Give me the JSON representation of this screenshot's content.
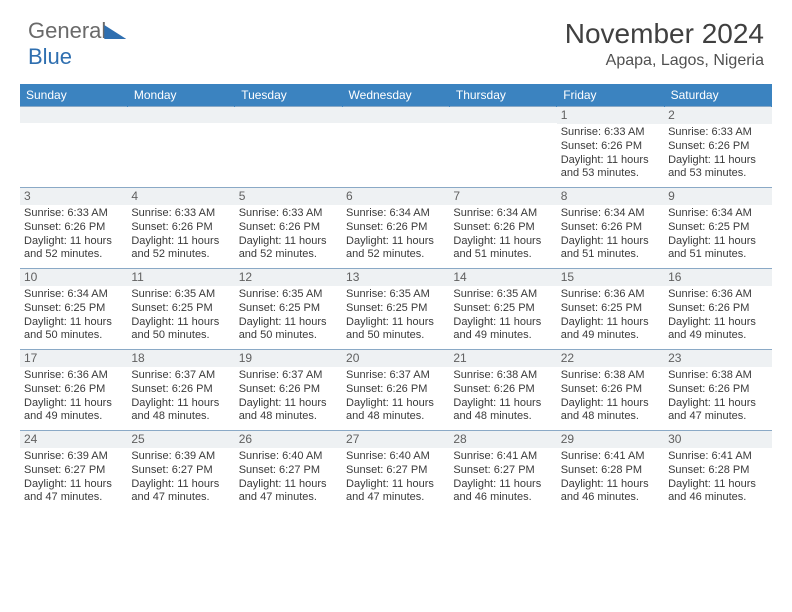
{
  "logo": {
    "part1": "General",
    "part2": "Blue"
  },
  "title": "November 2024",
  "location": "Apapa, Lagos, Nigeria",
  "dow": [
    "Sunday",
    "Monday",
    "Tuesday",
    "Wednesday",
    "Thursday",
    "Friday",
    "Saturday"
  ],
  "colors": {
    "header_bg": "#3b83c0",
    "header_text": "#ffffff",
    "cell_border": "#8aa9c6",
    "daynum_bg": "#eef1f3",
    "text": "#3a3a3a",
    "title_text": "#404040",
    "logo_gray": "#6a6a6a",
    "logo_blue": "#2f6fb0"
  },
  "weeks": [
    [
      {
        "n": "",
        "sr": "",
        "ss": "",
        "dl": ""
      },
      {
        "n": "",
        "sr": "",
        "ss": "",
        "dl": ""
      },
      {
        "n": "",
        "sr": "",
        "ss": "",
        "dl": ""
      },
      {
        "n": "",
        "sr": "",
        "ss": "",
        "dl": ""
      },
      {
        "n": "",
        "sr": "",
        "ss": "",
        "dl": ""
      },
      {
        "n": "1",
        "sr": "Sunrise: 6:33 AM",
        "ss": "Sunset: 6:26 PM",
        "dl": "Daylight: 11 hours and 53 minutes."
      },
      {
        "n": "2",
        "sr": "Sunrise: 6:33 AM",
        "ss": "Sunset: 6:26 PM",
        "dl": "Daylight: 11 hours and 53 minutes."
      }
    ],
    [
      {
        "n": "3",
        "sr": "Sunrise: 6:33 AM",
        "ss": "Sunset: 6:26 PM",
        "dl": "Daylight: 11 hours and 52 minutes."
      },
      {
        "n": "4",
        "sr": "Sunrise: 6:33 AM",
        "ss": "Sunset: 6:26 PM",
        "dl": "Daylight: 11 hours and 52 minutes."
      },
      {
        "n": "5",
        "sr": "Sunrise: 6:33 AM",
        "ss": "Sunset: 6:26 PM",
        "dl": "Daylight: 11 hours and 52 minutes."
      },
      {
        "n": "6",
        "sr": "Sunrise: 6:34 AM",
        "ss": "Sunset: 6:26 PM",
        "dl": "Daylight: 11 hours and 52 minutes."
      },
      {
        "n": "7",
        "sr": "Sunrise: 6:34 AM",
        "ss": "Sunset: 6:26 PM",
        "dl": "Daylight: 11 hours and 51 minutes."
      },
      {
        "n": "8",
        "sr": "Sunrise: 6:34 AM",
        "ss": "Sunset: 6:26 PM",
        "dl": "Daylight: 11 hours and 51 minutes."
      },
      {
        "n": "9",
        "sr": "Sunrise: 6:34 AM",
        "ss": "Sunset: 6:25 PM",
        "dl": "Daylight: 11 hours and 51 minutes."
      }
    ],
    [
      {
        "n": "10",
        "sr": "Sunrise: 6:34 AM",
        "ss": "Sunset: 6:25 PM",
        "dl": "Daylight: 11 hours and 50 minutes."
      },
      {
        "n": "11",
        "sr": "Sunrise: 6:35 AM",
        "ss": "Sunset: 6:25 PM",
        "dl": "Daylight: 11 hours and 50 minutes."
      },
      {
        "n": "12",
        "sr": "Sunrise: 6:35 AM",
        "ss": "Sunset: 6:25 PM",
        "dl": "Daylight: 11 hours and 50 minutes."
      },
      {
        "n": "13",
        "sr": "Sunrise: 6:35 AM",
        "ss": "Sunset: 6:25 PM",
        "dl": "Daylight: 11 hours and 50 minutes."
      },
      {
        "n": "14",
        "sr": "Sunrise: 6:35 AM",
        "ss": "Sunset: 6:25 PM",
        "dl": "Daylight: 11 hours and 49 minutes."
      },
      {
        "n": "15",
        "sr": "Sunrise: 6:36 AM",
        "ss": "Sunset: 6:25 PM",
        "dl": "Daylight: 11 hours and 49 minutes."
      },
      {
        "n": "16",
        "sr": "Sunrise: 6:36 AM",
        "ss": "Sunset: 6:26 PM",
        "dl": "Daylight: 11 hours and 49 minutes."
      }
    ],
    [
      {
        "n": "17",
        "sr": "Sunrise: 6:36 AM",
        "ss": "Sunset: 6:26 PM",
        "dl": "Daylight: 11 hours and 49 minutes."
      },
      {
        "n": "18",
        "sr": "Sunrise: 6:37 AM",
        "ss": "Sunset: 6:26 PM",
        "dl": "Daylight: 11 hours and 48 minutes."
      },
      {
        "n": "19",
        "sr": "Sunrise: 6:37 AM",
        "ss": "Sunset: 6:26 PM",
        "dl": "Daylight: 11 hours and 48 minutes."
      },
      {
        "n": "20",
        "sr": "Sunrise: 6:37 AM",
        "ss": "Sunset: 6:26 PM",
        "dl": "Daylight: 11 hours and 48 minutes."
      },
      {
        "n": "21",
        "sr": "Sunrise: 6:38 AM",
        "ss": "Sunset: 6:26 PM",
        "dl": "Daylight: 11 hours and 48 minutes."
      },
      {
        "n": "22",
        "sr": "Sunrise: 6:38 AM",
        "ss": "Sunset: 6:26 PM",
        "dl": "Daylight: 11 hours and 48 minutes."
      },
      {
        "n": "23",
        "sr": "Sunrise: 6:38 AM",
        "ss": "Sunset: 6:26 PM",
        "dl": "Daylight: 11 hours and 47 minutes."
      }
    ],
    [
      {
        "n": "24",
        "sr": "Sunrise: 6:39 AM",
        "ss": "Sunset: 6:27 PM",
        "dl": "Daylight: 11 hours and 47 minutes."
      },
      {
        "n": "25",
        "sr": "Sunrise: 6:39 AM",
        "ss": "Sunset: 6:27 PM",
        "dl": "Daylight: 11 hours and 47 minutes."
      },
      {
        "n": "26",
        "sr": "Sunrise: 6:40 AM",
        "ss": "Sunset: 6:27 PM",
        "dl": "Daylight: 11 hours and 47 minutes."
      },
      {
        "n": "27",
        "sr": "Sunrise: 6:40 AM",
        "ss": "Sunset: 6:27 PM",
        "dl": "Daylight: 11 hours and 47 minutes."
      },
      {
        "n": "28",
        "sr": "Sunrise: 6:41 AM",
        "ss": "Sunset: 6:27 PM",
        "dl": "Daylight: 11 hours and 46 minutes."
      },
      {
        "n": "29",
        "sr": "Sunrise: 6:41 AM",
        "ss": "Sunset: 6:28 PM",
        "dl": "Daylight: 11 hours and 46 minutes."
      },
      {
        "n": "30",
        "sr": "Sunrise: 6:41 AM",
        "ss": "Sunset: 6:28 PM",
        "dl": "Daylight: 11 hours and 46 minutes."
      }
    ]
  ]
}
